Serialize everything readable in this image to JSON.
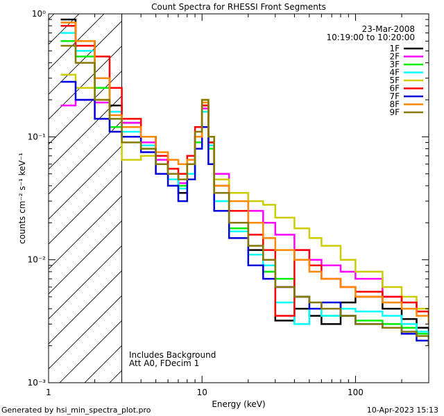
{
  "chart_data": {
    "type": "line",
    "title": "Count Spectra for RHESSI Front Segments",
    "xlabel": "Energy (keV)",
    "ylabel": "counts cm⁻² s⁻¹ keV⁻¹",
    "xscale": "log",
    "yscale": "log",
    "xlim": [
      1,
      300
    ],
    "ylim": [
      0.001,
      1
    ],
    "x_tick_labels": [
      {
        "value": 1,
        "label": "1"
      },
      {
        "value": 10,
        "label": "10"
      },
      {
        "value": 100,
        "label": "100"
      }
    ],
    "y_tick_labels": [
      {
        "value": 1,
        "label": "10⁰"
      },
      {
        "value": 0.1,
        "label": "10⁻¹"
      },
      {
        "value": 0.01,
        "label": "10⁻²"
      },
      {
        "value": 0.001,
        "label": "10⁻³"
      }
    ],
    "date": "23-Mar-2008",
    "time_range": "10:19:00 to 10:20:00",
    "annotations": [
      "Includes Background",
      "Att A0, FDecim 1"
    ],
    "shaded_region": {
      "x_min": 1,
      "x_max": 3,
      "style": "diagonal-hatch"
    },
    "series": [
      {
        "name": "1F",
        "color": "#000000",
        "x": [
          1.2,
          1.5,
          2,
          2.5,
          3,
          4,
          5,
          6,
          7,
          8,
          9,
          10,
          11,
          12,
          15,
          20,
          25,
          30,
          40,
          50,
          60,
          80,
          100,
          150,
          200,
          250,
          300
        ],
        "values": [
          0.9,
          0.6,
          0.3,
          0.18,
          0.13,
          0.1,
          0.07,
          0.05,
          0.035,
          0.05,
          0.1,
          0.18,
          0.09,
          0.035,
          0.02,
          0.012,
          0.01,
          0.0032,
          0.004,
          0.0035,
          0.003,
          0.0045,
          0.005,
          0.004,
          0.0033,
          0.0028,
          0.0022
        ]
      },
      {
        "name": "2F",
        "color": "#ff00ff",
        "x": [
          1.2,
          1.5,
          2,
          2.5,
          3,
          4,
          5,
          6,
          7,
          8,
          9,
          10,
          11,
          12,
          15,
          20,
          25,
          30,
          40,
          50,
          60,
          80,
          100,
          150,
          200,
          250,
          300
        ],
        "values": [
          0.18,
          0.2,
          0.19,
          0.16,
          0.13,
          0.09,
          0.065,
          0.05,
          0.042,
          0.05,
          0.1,
          0.17,
          0.09,
          0.05,
          0.035,
          0.025,
          0.02,
          0.016,
          0.012,
          0.01,
          0.009,
          0.008,
          0.007,
          0.005,
          0.0045,
          0.004,
          0.0035
        ]
      },
      {
        "name": "3F",
        "color": "#00ee00",
        "x": [
          1.2,
          1.5,
          2,
          2.5,
          3,
          4,
          5,
          6,
          7,
          8,
          9,
          10,
          11,
          12,
          15,
          20,
          25,
          30,
          40,
          50,
          60,
          80,
          100,
          150,
          200,
          250,
          300
        ],
        "values": [
          0.6,
          0.45,
          0.25,
          0.12,
          0.1,
          0.08,
          0.06,
          0.045,
          0.04,
          0.05,
          0.09,
          0.16,
          0.08,
          0.03,
          0.018,
          0.011,
          0.008,
          0.007,
          0.005,
          0.004,
          0.0035,
          0.0035,
          0.0032,
          0.003,
          0.0028,
          0.0025,
          0.0022
        ]
      },
      {
        "name": "4F",
        "color": "#00ffff",
        "x": [
          1.2,
          1.5,
          2,
          2.5,
          3,
          4,
          5,
          6,
          7,
          8,
          9,
          10,
          11,
          12,
          15,
          20,
          25,
          30,
          40,
          50,
          60,
          80,
          100,
          150,
          200,
          250,
          300
        ],
        "values": [
          0.7,
          0.5,
          0.3,
          0.16,
          0.11,
          0.085,
          0.06,
          0.045,
          0.038,
          0.05,
          0.1,
          0.16,
          0.085,
          0.03,
          0.017,
          0.011,
          0.009,
          0.0045,
          0.003,
          0.004,
          0.0035,
          0.004,
          0.0038,
          0.0035,
          0.003,
          0.0026,
          0.0022
        ]
      },
      {
        "name": "5F",
        "color": "#cccc00",
        "x": [
          1.2,
          1.5,
          2,
          2.5,
          3,
          4,
          5,
          6,
          7,
          8,
          9,
          10,
          11,
          12,
          15,
          20,
          25,
          30,
          40,
          50,
          60,
          80,
          100,
          150,
          200,
          250,
          300
        ],
        "values": [
          0.32,
          0.25,
          0.2,
          0.11,
          0.065,
          0.07,
          0.06,
          0.05,
          0.045,
          0.06,
          0.1,
          0.2,
          0.1,
          0.045,
          0.035,
          0.03,
          0.028,
          0.022,
          0.018,
          0.015,
          0.013,
          0.01,
          0.008,
          0.006,
          0.005,
          0.004,
          0.0035
        ]
      },
      {
        "name": "6F",
        "color": "#ff0000",
        "x": [
          1.2,
          1.5,
          2,
          2.5,
          3,
          4,
          5,
          6,
          7,
          8,
          9,
          10,
          11,
          12,
          15,
          20,
          25,
          30,
          40,
          50,
          60,
          80,
          100,
          150,
          200,
          250,
          300
        ],
        "values": [
          0.8,
          0.55,
          0.45,
          0.25,
          0.14,
          0.1,
          0.07,
          0.055,
          0.05,
          0.07,
          0.12,
          0.18,
          0.09,
          0.04,
          0.025,
          0.016,
          0.012,
          0.0035,
          0.012,
          0.009,
          0.007,
          0.006,
          0.0055,
          0.005,
          0.0045,
          0.0038,
          0.003
        ]
      },
      {
        "name": "7F",
        "color": "#0000dd",
        "x": [
          1.2,
          1.5,
          2,
          2.5,
          3,
          4,
          5,
          6,
          7,
          8,
          9,
          10,
          11,
          12,
          15,
          20,
          25,
          30,
          40,
          50,
          60,
          80,
          100,
          150,
          200,
          250,
          300
        ],
        "values": [
          0.28,
          0.2,
          0.14,
          0.11,
          0.1,
          0.075,
          0.05,
          0.04,
          0.03,
          0.045,
          0.08,
          0.12,
          0.06,
          0.025,
          0.015,
          0.009,
          0.007,
          0.006,
          0.005,
          0.004,
          0.0045,
          0.0035,
          0.003,
          0.0028,
          0.0025,
          0.0022,
          0.002
        ]
      },
      {
        "name": "8F",
        "color": "#ff8800",
        "x": [
          1.2,
          1.5,
          2,
          2.5,
          3,
          4,
          5,
          6,
          7,
          8,
          9,
          10,
          11,
          12,
          15,
          20,
          25,
          30,
          40,
          50,
          60,
          80,
          100,
          150,
          200,
          250,
          300
        ],
        "values": [
          0.85,
          0.6,
          0.3,
          0.15,
          0.12,
          0.1,
          0.075,
          0.065,
          0.06,
          0.065,
          0.1,
          0.19,
          0.1,
          0.04,
          0.03,
          0.02,
          0.015,
          0.012,
          0.01,
          0.008,
          0.007,
          0.006,
          0.005,
          0.0045,
          0.004,
          0.0035,
          0.003
        ]
      },
      {
        "name": "9F",
        "color": "#887700",
        "x": [
          1.2,
          1.5,
          2,
          2.5,
          3,
          4,
          5,
          6,
          7,
          8,
          9,
          10,
          11,
          12,
          15,
          20,
          25,
          30,
          40,
          50,
          60,
          80,
          100,
          150,
          200,
          250,
          300
        ],
        "values": [
          0.55,
          0.4,
          0.2,
          0.14,
          0.09,
          0.08,
          0.06,
          0.05,
          0.045,
          0.06,
          0.11,
          0.2,
          0.1,
          0.035,
          0.02,
          0.013,
          0.01,
          0.006,
          0.005,
          0.0045,
          0.004,
          0.0035,
          0.003,
          0.0028,
          0.0026,
          0.0024,
          0.002
        ]
      }
    ]
  },
  "footer": {
    "generated_by": "Generated by hsi_min_spectra_plot.pro",
    "timestamp": "10-Apr-2023 15:13"
  }
}
